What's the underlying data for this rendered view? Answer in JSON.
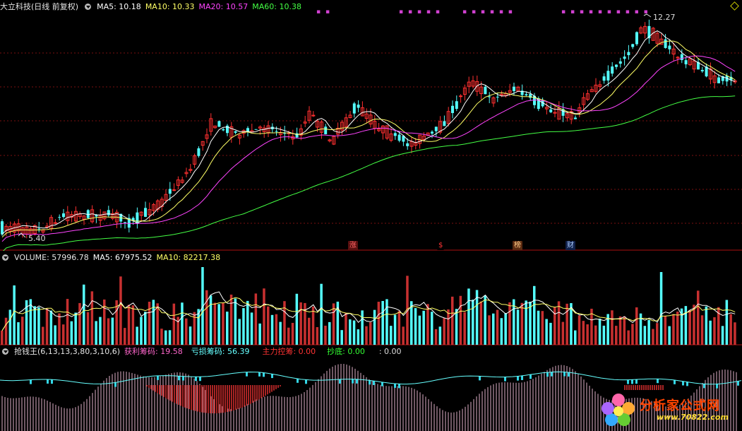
{
  "main": {
    "stock_name": "大立科技(日线 前复权)",
    "ma": [
      {
        "label": "MA5: 10.18",
        "color": "#ffffff"
      },
      {
        "label": "MA10: 10.33",
        "color": "#ffff66"
      },
      {
        "label": "MA20: 10.57",
        "color": "#ff44ff"
      },
      {
        "label": "MA60: 10.38",
        "color": "#44ff44"
      }
    ],
    "high_label": "12.27",
    "low_label": "5.40"
  },
  "tags": [
    {
      "label": "涨",
      "color": "#ff6666",
      "bg": "#5a1010"
    },
    {
      "label": "$",
      "color": "#ff3333",
      "bg": "#000000"
    },
    {
      "label": "榜",
      "color": "#ffcc88",
      "bg": "#5a2a10"
    },
    {
      "label": "财",
      "color": "#aaccff",
      "bg": "#10204a"
    }
  ],
  "volume": {
    "label": "VOLUME: 57996.78",
    "ma5": "MA5: 67975.52",
    "ma10": "MA10: 82217.38"
  },
  "indicator": {
    "name": "抢钱王(6,13,13,3,80,3,10,6)",
    "items": [
      {
        "label": "获利筹码: 19.58",
        "color": "#ff66cc"
      },
      {
        "label": "亏损筹码: 56.39",
        "color": "#66ffff"
      },
      {
        "label": "主力控筹: 0.00",
        "color": "#ff3333"
      },
      {
        "label": "抄底: 0.00",
        "color": "#33ff33"
      },
      {
        "label": ": 0.00",
        "color": "#dddddd"
      }
    ]
  },
  "watermark": {
    "name": "分析家公式网",
    "url": "www.70822.com"
  },
  "colors": {
    "up": "#ff3030",
    "down": "#54ffff",
    "grid": "#7a1010",
    "ma5": "#ffffff",
    "ma10": "#ffff66",
    "ma20": "#ff44ff",
    "ma60": "#44ff44"
  }
}
